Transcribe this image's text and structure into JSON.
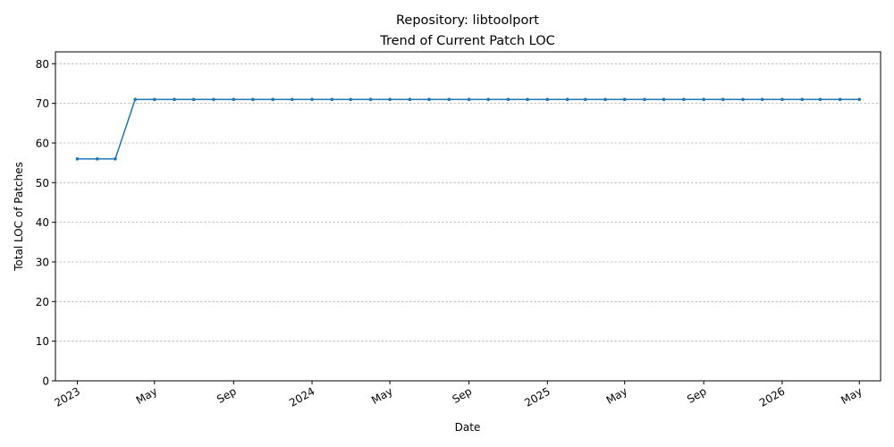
{
  "chart_data": {
    "type": "line",
    "title": "Repository: libtoolport",
    "subtitle": "Trend of Current Patch LOC",
    "xlabel": "Date",
    "ylabel": "Total LOC of Patches",
    "ylim": [
      0,
      83
    ],
    "yticks": [
      0,
      10,
      20,
      30,
      40,
      50,
      60,
      70,
      80
    ],
    "xlim": [
      "2022-11-28",
      "2026-06-03"
    ],
    "xticks": [
      {
        "date": "2023-01-01",
        "label": "2023"
      },
      {
        "date": "2023-05-01",
        "label": "May"
      },
      {
        "date": "2023-09-01",
        "label": "Sep"
      },
      {
        "date": "2024-01-01",
        "label": "2024"
      },
      {
        "date": "2024-05-01",
        "label": "May"
      },
      {
        "date": "2024-09-01",
        "label": "Sep"
      },
      {
        "date": "2025-01-01",
        "label": "2025"
      },
      {
        "date": "2025-05-01",
        "label": "May"
      },
      {
        "date": "2025-09-01",
        "label": "Sep"
      },
      {
        "date": "2026-01-01",
        "label": "2026"
      },
      {
        "date": "2026-05-01",
        "label": "May"
      }
    ],
    "grid": "y-dashed",
    "series": [
      {
        "color": "#1f77b4",
        "x": [
          "2023-01-01",
          "2023-02-01",
          "2023-03-01",
          "2023-04-01",
          "2023-05-01",
          "2023-06-01",
          "2023-07-01",
          "2023-08-01",
          "2023-09-01",
          "2023-10-01",
          "2023-11-01",
          "2023-12-01",
          "2024-01-01",
          "2024-02-01",
          "2024-03-01",
          "2024-04-01",
          "2024-05-01",
          "2024-06-01",
          "2024-07-01",
          "2024-08-01",
          "2024-09-01",
          "2024-10-01",
          "2024-11-01",
          "2024-12-01",
          "2025-01-01",
          "2025-02-01",
          "2025-03-01",
          "2025-04-01",
          "2025-05-01",
          "2025-06-01",
          "2025-07-01",
          "2025-08-01",
          "2025-09-01",
          "2025-10-01",
          "2025-11-01",
          "2025-12-01",
          "2026-01-01",
          "2026-02-01",
          "2026-03-01",
          "2026-04-01",
          "2026-05-01"
        ],
        "values": [
          56,
          56,
          56,
          71,
          71,
          71,
          71,
          71,
          71,
          71,
          71,
          71,
          71,
          71,
          71,
          71,
          71,
          71,
          71,
          71,
          71,
          71,
          71,
          71,
          71,
          71,
          71,
          71,
          71,
          71,
          71,
          71,
          71,
          71,
          71,
          71,
          71,
          71,
          71,
          71,
          71
        ]
      }
    ]
  }
}
